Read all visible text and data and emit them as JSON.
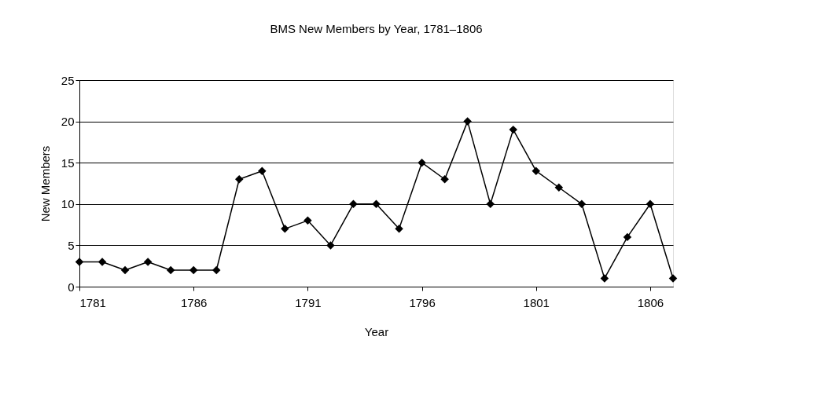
{
  "chart_data": {
    "type": "line",
    "title": "BMS New Members by Year, 1781–1806",
    "xlabel": "Year",
    "ylabel": "New Members",
    "x": [
      1781,
      1782,
      1783,
      1784,
      1785,
      1786,
      1787,
      1788,
      1789,
      1790,
      1791,
      1792,
      1793,
      1794,
      1795,
      1796,
      1797,
      1798,
      1799,
      1800,
      1801,
      1802,
      1803,
      1804,
      1805,
      1806,
      1807
    ],
    "series": [
      {
        "color": "#000000",
        "values": [
          3,
          3,
          2,
          3,
          2,
          2,
          2,
          13,
          14,
          7,
          8,
          5,
          10,
          10,
          7,
          15,
          13,
          20,
          10,
          19,
          14,
          12,
          10,
          1,
          6,
          10,
          1
        ]
      }
    ],
    "xlim": [
      1781,
      1807
    ],
    "xticks": [
      1781,
      1786,
      1791,
      1796,
      1801,
      1806
    ],
    "ylim": [
      0,
      25
    ],
    "yticks": [
      0,
      5,
      10,
      15,
      20,
      25
    ],
    "grid": "y",
    "legend": false,
    "marker": "diamond",
    "line_style": "solid"
  }
}
